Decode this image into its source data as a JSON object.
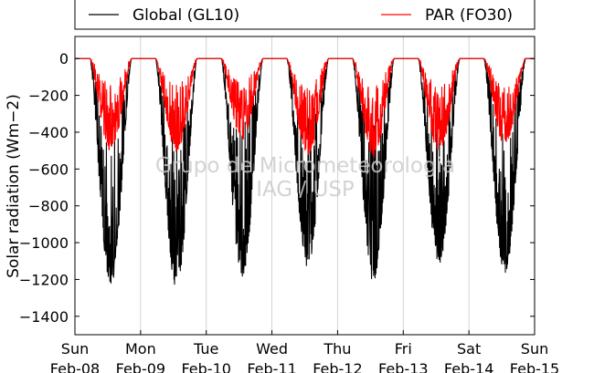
{
  "chart_data": {
    "type": "line",
    "ylabel": "Solar radiation (Wm−2)",
    "ylim": [
      -1500,
      120
    ],
    "yticks": [
      0,
      -200,
      -400,
      -600,
      -800,
      -1000,
      -1200,
      -1400
    ],
    "ytick_labels": [
      "0",
      "−200",
      "−400",
      "−600",
      "−800",
      "−1000",
      "−1200",
      "−1400"
    ],
    "xlim": [
      0,
      7
    ],
    "xticks": [
      {
        "x": 0,
        "day": "Sun",
        "date": "Feb-08"
      },
      {
        "x": 1,
        "day": "Mon",
        "date": "Feb-09"
      },
      {
        "x": 2,
        "day": "Tue",
        "date": "Feb-10"
      },
      {
        "x": 3,
        "day": "Wed",
        "date": "Feb-11"
      },
      {
        "x": 4,
        "day": "Thu",
        "date": "Feb-12"
      },
      {
        "x": 5,
        "day": "Fri",
        "date": "Feb-13"
      },
      {
        "x": 6,
        "day": "Sat",
        "date": "Feb-14"
      },
      {
        "x": 7,
        "day": "Sun",
        "date": "Feb-15"
      }
    ],
    "grid": "vertical",
    "legend_position": "top",
    "series": [
      {
        "name": "Global (GL10)",
        "color": "#000000",
        "daily_minimum": [
          -1230,
          -1255,
          -1195,
          -1140,
          -1215,
          -1135,
          -1180
        ]
      },
      {
        "name": "PAR (FO30)",
        "color": "#ff0000",
        "daily_minimum": [
          -505,
          -505,
          -445,
          -525,
          -540,
          -510,
          -470
        ]
      }
    ],
    "watermark": [
      "Grupo de Micrometeorologia",
      "IAG / USP"
    ]
  }
}
